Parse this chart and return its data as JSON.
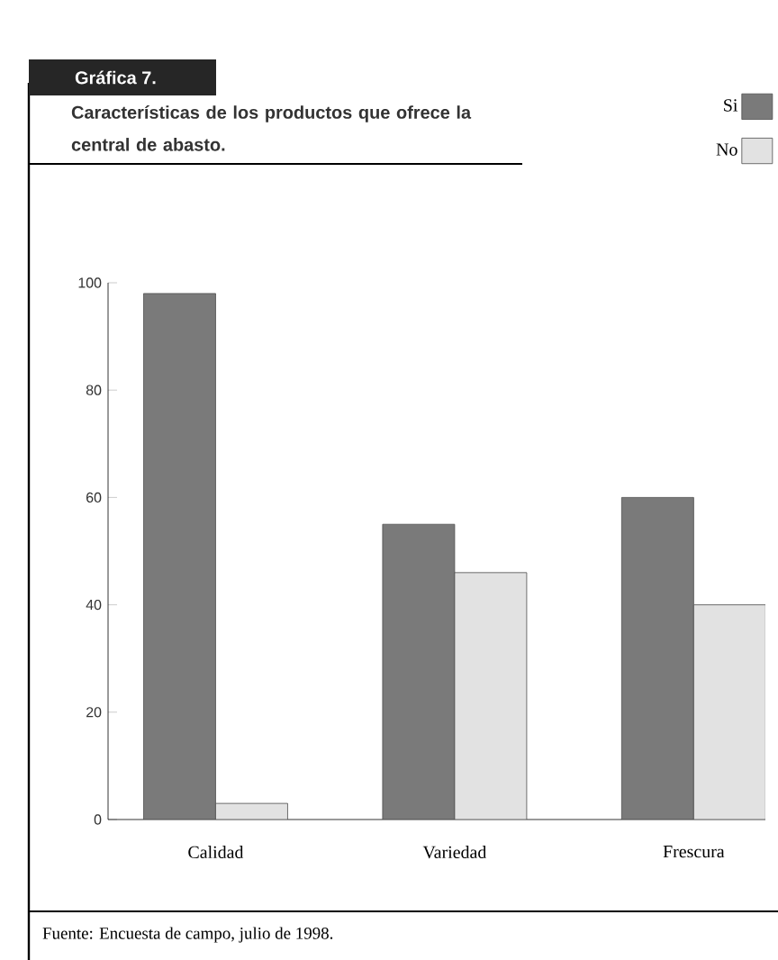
{
  "chart_data": {
    "type": "bar",
    "title": "Gráfica 7.",
    "subtitle": "Características de los productos que ofrece la central de abasto.",
    "categories": [
      "Calidad",
      "Variedad",
      "Frescura"
    ],
    "series": [
      {
        "name": "Si",
        "color": "#7a7a7a",
        "values": [
          98,
          55,
          60
        ]
      },
      {
        "name": "No",
        "color": "#e2e2e2",
        "values": [
          3,
          46,
          40
        ]
      }
    ],
    "ylim": [
      0,
      100
    ],
    "yticks": [
      0,
      20,
      40,
      60,
      80,
      100
    ],
    "legend": "top right",
    "annotations": [
      "Fuente: Encuesta de campo, julio de 1998."
    ]
  }
}
